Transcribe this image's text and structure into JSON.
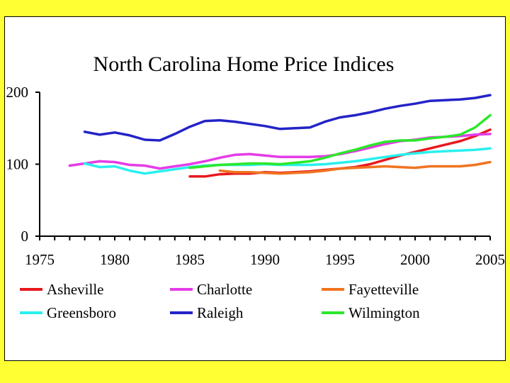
{
  "chart_data": {
    "type": "line",
    "title": "North Carolina Home Price Indices",
    "xlabel": "",
    "ylabel": "",
    "xlim": [
      1975,
      2005
    ],
    "ylim": [
      0,
      200
    ],
    "x_ticks": [
      1975,
      1980,
      1985,
      1990,
      1995,
      2000,
      2005
    ],
    "y_ticks": [
      0,
      100,
      200
    ],
    "legend_position": "bottom",
    "series": [
      {
        "name": "Asheville",
        "color": "#E8181E",
        "x": [
          1985,
          1986,
          1987,
          1988,
          1989,
          1990,
          1991,
          1992,
          1993,
          1994,
          1995,
          1996,
          1997,
          1998,
          1999,
          2000,
          2001,
          2002,
          2003,
          2004,
          2005
        ],
        "values": [
          83,
          83,
          86,
          87,
          87,
          89,
          88,
          89,
          90,
          92,
          94,
          96,
          100,
          106,
          112,
          117,
          122,
          127,
          132,
          139,
          148
        ]
      },
      {
        "name": "Charlotte",
        "color": "#E53BE8",
        "x": [
          1977,
          1978,
          1979,
          1980,
          1981,
          1982,
          1983,
          1984,
          1985,
          1986,
          1987,
          1988,
          1989,
          1990,
          1991,
          1992,
          1993,
          1994,
          1995,
          1996,
          1997,
          1998,
          1999,
          2000,
          2001,
          2002,
          2003,
          2004,
          2005
        ],
        "values": [
          98,
          101,
          104,
          103,
          99,
          98,
          94,
          97,
          100,
          104,
          109,
          113,
          114,
          112,
          110,
          110,
          110,
          111,
          114,
          118,
          123,
          128,
          132,
          134,
          137,
          138,
          139,
          141,
          142
        ]
      },
      {
        "name": "Fayetteville",
        "color": "#F07420",
        "x": [
          1987,
          1988,
          1989,
          1990,
          1991,
          1992,
          1993,
          1994,
          1995,
          1996,
          1997,
          1998,
          1999,
          2000,
          2001,
          2002,
          2003,
          2004,
          2005
        ],
        "values": [
          91,
          89,
          89,
          88,
          87,
          88,
          89,
          91,
          94,
          95,
          96,
          97,
          96,
          95,
          97,
          97,
          97,
          99,
          103
        ]
      },
      {
        "name": "Greensboro",
        "color": "#29F0EE",
        "x": [
          1978,
          1979,
          1980,
          1981,
          1982,
          1983,
          1984,
          1985,
          1986,
          1987,
          1988,
          1989,
          1990,
          1991,
          1992,
          1993,
          1994,
          1995,
          1996,
          1997,
          1998,
          1999,
          2000,
          2001,
          2002,
          2003,
          2004,
          2005
        ],
        "values": [
          101,
          96,
          97,
          91,
          87,
          90,
          93,
          96,
          98,
          99,
          99,
          99,
          100,
          99,
          99,
          99,
          100,
          102,
          104,
          107,
          110,
          113,
          115,
          117,
          118,
          119,
          120,
          122
        ]
      },
      {
        "name": "Raleigh",
        "color": "#2323C8",
        "x": [
          1978,
          1979,
          1980,
          1981,
          1982,
          1983,
          1984,
          1985,
          1986,
          1987,
          1988,
          1989,
          1990,
          1991,
          1992,
          1993,
          1994,
          1995,
          1996,
          1997,
          1998,
          1999,
          2000,
          2001,
          2002,
          2003,
          2004,
          2005
        ],
        "values": [
          145,
          141,
          144,
          140,
          134,
          133,
          142,
          152,
          160,
          161,
          159,
          156,
          153,
          149,
          150,
          151,
          159,
          165,
          168,
          172,
          177,
          181,
          184,
          188,
          189,
          190,
          192,
          196
        ]
      },
      {
        "name": "Wilmington",
        "color": "#2BE82B",
        "x": [
          1985,
          1986,
          1987,
          1988,
          1989,
          1990,
          1991,
          1992,
          1993,
          1994,
          1995,
          1996,
          1997,
          1998,
          1999,
          2000,
          2001,
          2002,
          2003,
          2004,
          2005
        ],
        "values": [
          95,
          97,
          99,
          100,
          101,
          101,
          100,
          102,
          104,
          109,
          115,
          120,
          126,
          131,
          133,
          133,
          136,
          138,
          141,
          151,
          168
        ]
      }
    ]
  }
}
